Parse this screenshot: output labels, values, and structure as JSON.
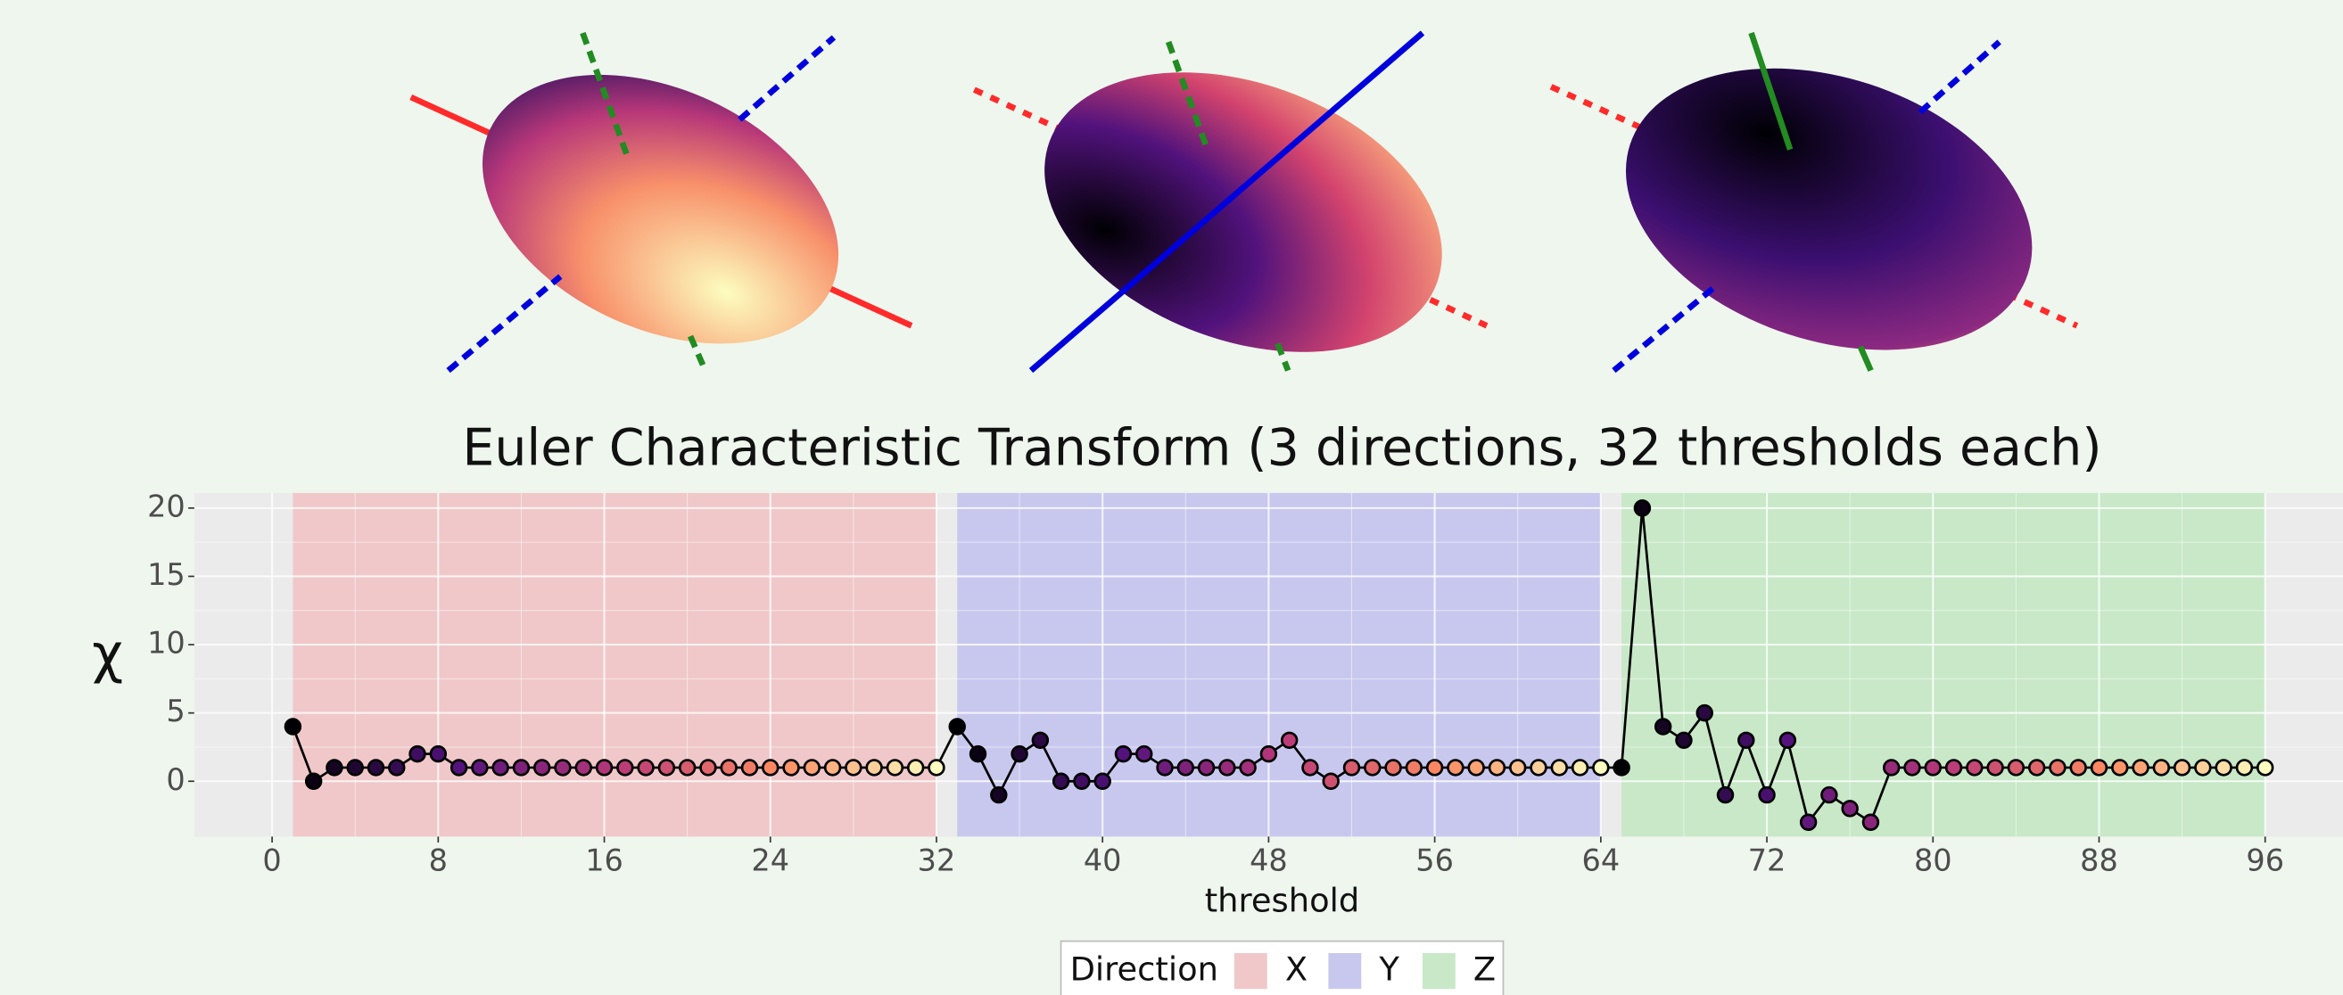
{
  "chart_data": {
    "type": "line",
    "title": "Euler Characteristic Transform (3 directions, 32 thresholds each)",
    "x_label": "threshold",
    "y_label": "χ",
    "x": [
      1,
      2,
      3,
      4,
      5,
      6,
      7,
      8,
      9,
      10,
      11,
      12,
      13,
      14,
      15,
      16,
      17,
      18,
      19,
      20,
      21,
      22,
      23,
      24,
      25,
      26,
      27,
      28,
      29,
      30,
      31,
      32,
      33,
      34,
      35,
      36,
      37,
      38,
      39,
      40,
      41,
      42,
      43,
      44,
      45,
      46,
      47,
      48,
      49,
      50,
      51,
      52,
      53,
      54,
      55,
      56,
      57,
      58,
      59,
      60,
      61,
      62,
      63,
      64,
      65,
      66,
      67,
      68,
      69,
      70,
      71,
      72,
      73,
      74,
      75,
      76,
      77,
      78,
      79,
      80,
      81,
      82,
      83,
      84,
      85,
      86,
      87,
      88,
      89,
      90,
      91,
      92,
      93,
      94,
      95,
      96
    ],
    "y": [
      4,
      0,
      1,
      1,
      1,
      1,
      2,
      2,
      1,
      1,
      1,
      1,
      1,
      1,
      1,
      1,
      1,
      1,
      1,
      1,
      1,
      1,
      1,
      1,
      1,
      1,
      1,
      1,
      1,
      1,
      1,
      1,
      4,
      2,
      -1,
      2,
      3,
      0,
      0,
      0,
      2,
      2,
      1,
      1,
      1,
      1,
      1,
      2,
      3,
      1,
      0,
      1,
      1,
      1,
      1,
      1,
      1,
      1,
      1,
      1,
      1,
      1,
      1,
      1,
      1,
      20,
      4,
      3,
      5,
      -1,
      3,
      -1,
      3,
      -3,
      -1,
      -2,
      -3,
      1,
      1,
      1,
      1,
      1,
      1,
      1,
      1,
      1,
      1,
      1,
      1,
      1,
      1,
      1,
      1,
      1,
      1,
      1
    ],
    "line_color": "#000000",
    "marker_colormap": [
      "#000004",
      "#51127c",
      "#b73779",
      "#fc8961",
      "#fcfdbf"
    ],
    "bands": [
      {
        "name": "X",
        "color": "#f0c8c9",
        "range": [
          1,
          32
        ]
      },
      {
        "name": "Y",
        "color": "#c8c8ef",
        "range": [
          33,
          64
        ]
      },
      {
        "name": "Z",
        "color": "#c8e8c8",
        "range": [
          65,
          96
        ]
      }
    ],
    "legend_title": "Direction",
    "xlim": [
      -3.75,
      99.75
    ],
    "ylim": [
      -4.05,
      21.1
    ],
    "xticks": [
      0,
      8,
      16,
      24,
      32,
      40,
      48,
      56,
      64,
      72,
      80,
      88,
      96
    ],
    "yticks": [
      0,
      5,
      10,
      15,
      20
    ],
    "grid": true
  }
}
